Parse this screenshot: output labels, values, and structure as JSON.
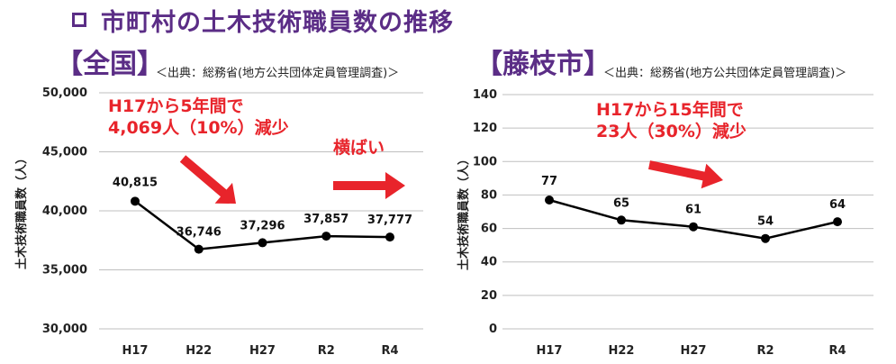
{
  "page_title": "市町村の土木技術職員数の推移",
  "charts": [
    {
      "region": "【全国】",
      "source": "＜出典：総務省(地方公共団体定員管理調査)＞",
      "annotation_lines": [
        "H17から5年間で",
        "4,069人（10%）減少"
      ],
      "annotation2": "横ばい",
      "ylabel": "土木技術職員数（人）",
      "ytick_labels": [
        "50,000",
        "45,000",
        "40,000",
        "35,000",
        "30,000"
      ],
      "point_labels": [
        "40,815",
        "36,746",
        "37,296",
        "37,857",
        "37,777"
      ]
    },
    {
      "region": "【藤枝市】",
      "source": "＜出典：総務省(地方公共団体定員管理調査)＞",
      "annotation_lines": [
        "H17から15年間で",
        "23人（30%）減少"
      ],
      "ylabel": "土木技術職員数（人）",
      "ytick_labels": [
        "140",
        "120",
        "100",
        "80",
        "60",
        "40",
        "20",
        "0"
      ],
      "point_labels": [
        "77",
        "65",
        "61",
        "54",
        "64"
      ]
    }
  ],
  "chart_data": [
    {
      "type": "line",
      "categories": [
        "H17",
        "H22",
        "H27",
        "R2",
        "R4"
      ],
      "values": [
        40815,
        36746,
        37296,
        37857,
        37777
      ],
      "ylabel": "土木技術職員数（人）",
      "ylim": [
        30000,
        50000
      ],
      "yticks": [
        30000,
        35000,
        40000,
        45000,
        50000
      ],
      "grid": true
    },
    {
      "type": "line",
      "categories": [
        "H17",
        "H22",
        "H27",
        "R2",
        "R4"
      ],
      "values": [
        77,
        65,
        61,
        54,
        64
      ],
      "ylabel": "土木技術職員数（人）",
      "ylim": [
        0,
        140
      ],
      "yticks": [
        0,
        20,
        40,
        60,
        80,
        100,
        120,
        140
      ],
      "grid": true
    }
  ],
  "colors": {
    "title": "#5b2d86",
    "annotation": "#e8242b",
    "arrow": "#e8242b",
    "line": "#000000",
    "grid": "#bfbfbf"
  }
}
